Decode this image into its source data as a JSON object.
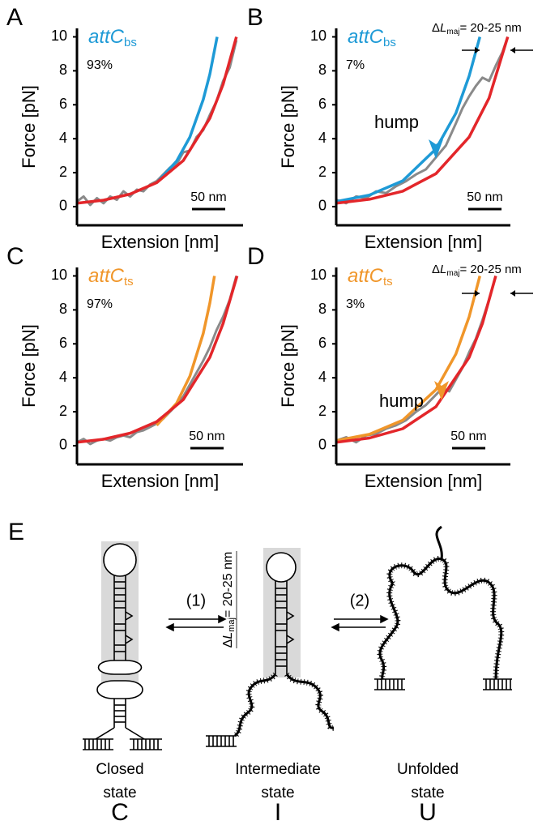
{
  "chart_data": [
    {
      "type": "line",
      "panel_label": "A",
      "series_label": {
        "text": "attC",
        "sub": "bs"
      },
      "percentage": "93%",
      "xlabel": "Extension [nm]",
      "ylabel": "Force [pN]",
      "xlim": [
        0,
        250
      ],
      "ylim": [
        -1.1,
        10.5
      ],
      "yticks": [
        0,
        2,
        4,
        6,
        8,
        10
      ],
      "scale_bar": {
        "value": 50,
        "label": "50 nm"
      },
      "series": [
        {
          "color": "#8a8a8a",
          "x": [
            0,
            10,
            20,
            30,
            40,
            50,
            60,
            70,
            80,
            90,
            100,
            110,
            120,
            130,
            140,
            150,
            160,
            170,
            180,
            190,
            200,
            210,
            220,
            230,
            240
          ],
          "values": [
            0.3,
            0.6,
            0.1,
            0.5,
            0.2,
            0.6,
            0.4,
            0.9,
            0.6,
            1.0,
            0.9,
            1.3,
            1.5,
            1.9,
            2.3,
            2.5,
            3.2,
            3.3,
            4.1,
            4.5,
            5.4,
            6.2,
            7.4,
            8.2,
            9.8
          ]
        },
        {
          "color": "#1e9ad6",
          "x": [
            120,
            150,
            170,
            190,
            200,
            211
          ],
          "values": [
            1.4,
            2.68,
            4.1,
            6.3,
            7.8,
            10
          ]
        },
        {
          "color": "#e3262a",
          "x": [
            0,
            40,
            80,
            120,
            160,
            200,
            220,
            240
          ],
          "values": [
            0.2,
            0.38,
            0.74,
            1.41,
            2.71,
            5.2,
            7.2,
            10
          ]
        }
      ]
    },
    {
      "type": "line",
      "panel_label": "B",
      "series_label": {
        "text": "attC",
        "sub": "bs"
      },
      "percentage": "7%",
      "xlabel": "Extension [nm]",
      "ylabel": "Force [pN]",
      "xlim": [
        0,
        262
      ],
      "ylim": [
        -1.1,
        10.5
      ],
      "yticks": [
        0,
        2,
        4,
        6,
        8,
        10
      ],
      "scale_bar": {
        "value": 50,
        "label": "50 nm"
      },
      "hump_label": "hump",
      "delta_label": {
        "prefix": "Δ",
        "var": "L",
        "sub": "maj",
        "rest": "= 20-25 nm"
      },
      "series": [
        {
          "color": "#8a8a8a",
          "x": [
            0,
            15,
            30,
            45,
            60,
            75,
            90,
            105,
            120,
            135,
            150,
            165,
            180,
            190,
            200,
            210,
            220,
            230,
            240,
            250,
            258
          ],
          "values": [
            0.4,
            0.2,
            0.6,
            0.5,
            0.9,
            0.8,
            1.2,
            1.5,
            1.9,
            2.2,
            2.9,
            3.6,
            4.9,
            5.8,
            6.5,
            7.1,
            7.6,
            7.4,
            8.3,
            9.1,
            10
          ]
        },
        {
          "color": "#1e9ad6",
          "x": [
            0,
            50,
            100,
            150,
            180,
            200,
            216
          ],
          "values": [
            0.3,
            0.68,
            1.52,
            3.4,
            5.5,
            7.7,
            10
          ]
        },
        {
          "color": "#e3262a",
          "x": [
            0,
            50,
            100,
            150,
            200,
            230,
            258
          ],
          "values": [
            0.2,
            0.43,
            0.91,
            1.94,
            4.1,
            6.4,
            10
          ]
        }
      ]
    },
    {
      "type": "line",
      "panel_label": "C",
      "series_label": {
        "text": "attC",
        "sub": "ts"
      },
      "percentage": "97%",
      "xlabel": "Extension [nm]",
      "ylabel": "Force [pN]",
      "xlim": [
        0,
        250
      ],
      "ylim": [
        -1.1,
        10.5
      ],
      "yticks": [
        0,
        2,
        4,
        6,
        8,
        10
      ],
      "scale_bar": {
        "value": 50,
        "label": "50 nm"
      },
      "series": [
        {
          "color": "#8a8a8a",
          "x": [
            0,
            10,
            20,
            30,
            40,
            50,
            60,
            70,
            80,
            90,
            100,
            110,
            120,
            130,
            140,
            150,
            160,
            170,
            180,
            190,
            200,
            210,
            220,
            230,
            240
          ],
          "values": [
            0.2,
            0.4,
            0.1,
            0.3,
            0.4,
            0.3,
            0.5,
            0.6,
            0.5,
            0.8,
            0.9,
            1.1,
            1.3,
            1.6,
            2.0,
            2.4,
            2.9,
            3.6,
            4.3,
            5.0,
            5.8,
            6.8,
            7.6,
            8.6,
            10
          ]
        },
        {
          "color": "#f0962a",
          "x": [
            120,
            150,
            170,
            190,
            200,
            207
          ],
          "values": [
            1.2,
            2.5,
            4.1,
            6.6,
            8.4,
            10
          ]
        },
        {
          "color": "#e3262a",
          "x": [
            0,
            40,
            80,
            120,
            160,
            200,
            220,
            241
          ],
          "values": [
            0.2,
            0.38,
            0.74,
            1.41,
            2.71,
            5.2,
            7.2,
            10
          ]
        }
      ]
    },
    {
      "type": "line",
      "panel_label": "D",
      "series_label": {
        "text": "attC",
        "sub": "ts"
      },
      "percentage": "3%",
      "xlabel": "Extension [nm]",
      "ylabel": "Force [pN]",
      "xlim": [
        0,
        262
      ],
      "ylim": [
        -1.1,
        10.5
      ],
      "yticks": [
        0,
        2,
        4,
        6,
        8,
        10
      ],
      "scale_bar": {
        "value": 50,
        "label": "50 nm"
      },
      "hump_label": "hump",
      "delta_label": {
        "prefix": "Δ",
        "var": "L",
        "sub": "maj",
        "rest": "= 20-25 nm"
      },
      "series": [
        {
          "color": "#8a8a8a",
          "x": [
            0,
            15,
            30,
            45,
            60,
            75,
            90,
            105,
            120,
            135,
            150,
            160,
            170,
            180,
            190,
            200,
            210,
            220,
            230,
            240
          ],
          "values": [
            0.3,
            0.5,
            0.2,
            0.6,
            0.7,
            1.0,
            1.2,
            1.5,
            2.0,
            2.4,
            3.0,
            3.4,
            3.2,
            3.9,
            4.6,
            5.5,
            6.3,
            7.4,
            8.6,
            10
          ]
        },
        {
          "color": "#f0962a",
          "x": [
            0,
            50,
            100,
            150,
            180,
            200,
            216
          ],
          "values": [
            0.3,
            0.67,
            1.5,
            3.3,
            5.4,
            7.6,
            10
          ]
        },
        {
          "color": "#e3262a",
          "x": [
            0,
            50,
            100,
            150,
            200,
            220,
            240
          ],
          "values": [
            0.2,
            0.45,
            1.0,
            2.3,
            5.2,
            7.2,
            10
          ]
        }
      ]
    }
  ],
  "diagram": {
    "panel_label": "E",
    "step1": "(1)",
    "step2": "(2)",
    "delta_label": {
      "prefix": "Δ",
      "var": "L",
      "sub": "maj",
      "rest": "= 20-25 nm"
    },
    "states": [
      {
        "line1": "Closed",
        "line2": "state",
        "symbol": "C"
      },
      {
        "line1": "Intermediate",
        "line2": "state",
        "symbol": "I"
      },
      {
        "line1": "Unfolded",
        "line2": "state",
        "symbol": "U"
      }
    ]
  }
}
